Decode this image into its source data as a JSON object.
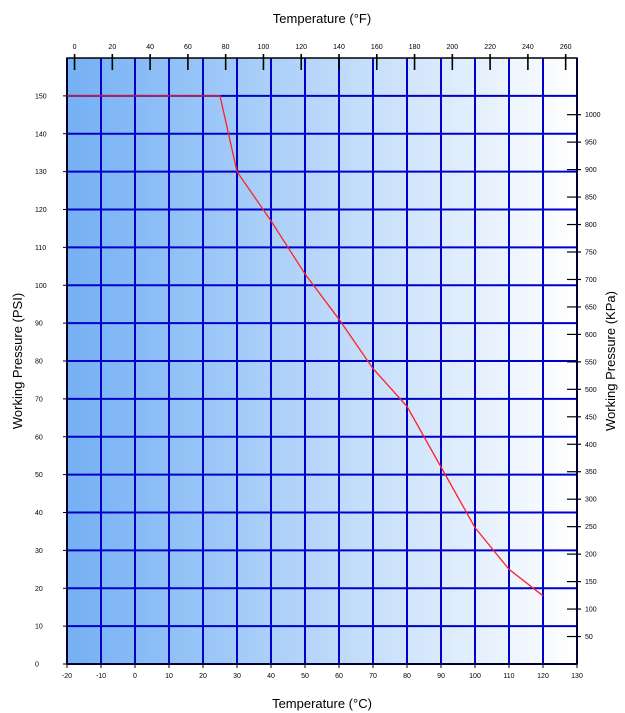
{
  "chart_data": {
    "type": "line",
    "xlabel_bottom": "Temperature (°C)",
    "xlabel_top": "Temperature (°F)",
    "ylabel_left": "Working Pressure (PSI)",
    "ylabel_right": "Working Pressure (KPa)",
    "xlim": [
      -20,
      130
    ],
    "ylim": [
      0,
      160
    ],
    "grid": true,
    "x_ticks_bottom": [
      -20,
      -10,
      0,
      10,
      20,
      30,
      40,
      50,
      60,
      70,
      80,
      90,
      100,
      110,
      120,
      130
    ],
    "x_ticks_top": [
      0,
      20,
      40,
      60,
      80,
      100,
      120,
      140,
      160,
      180,
      200,
      220,
      240,
      260
    ],
    "y_ticks_left": [
      0,
      10,
      20,
      30,
      40,
      50,
      60,
      70,
      80,
      90,
      100,
      110,
      120,
      130,
      140,
      150
    ],
    "y_ticks_right": [
      50,
      100,
      150,
      200,
      250,
      300,
      350,
      400,
      450,
      500,
      550,
      600,
      650,
      700,
      750,
      800,
      850,
      900,
      950,
      1000
    ],
    "series": [
      {
        "x": [
          -20,
          25,
          30,
          40,
          50,
          60,
          70,
          80,
          90,
          100,
          110,
          120
        ],
        "y": [
          150,
          150,
          130,
          117,
          103,
          91,
          78,
          68,
          52,
          36,
          25,
          18
        ]
      }
    ],
    "colors": {
      "line": "#ff2222",
      "grid": "#0000cc",
      "gradient_start": "#74b0f4",
      "gradient_end": "#ffffff"
    }
  }
}
